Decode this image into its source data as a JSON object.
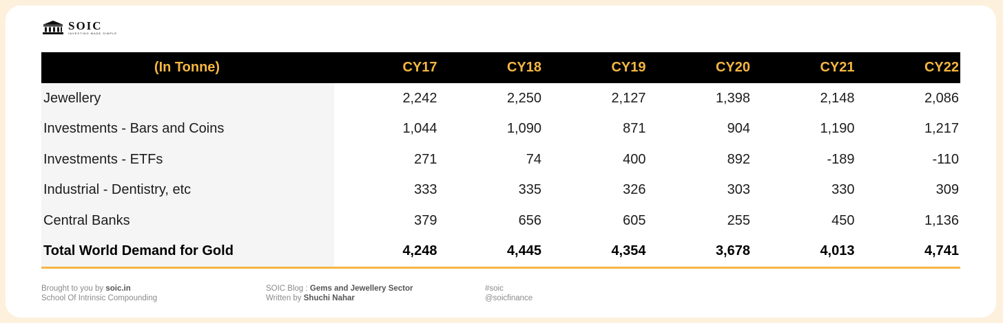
{
  "brand": {
    "name": "SOIC",
    "tagline": "INVESTING MADE SIMPLE",
    "icon": "bank-building-icon"
  },
  "colors": {
    "header_bg": "#000000",
    "accent": "#f5b642",
    "label_bg": "#f5f5f5",
    "page_bg": "#fdf1dd"
  },
  "table": {
    "header_label": "(In Tonne)",
    "columns": [
      "CY17",
      "CY18",
      "CY19",
      "CY20",
      "CY21",
      "CY22"
    ],
    "rows": [
      {
        "label": "Jewellery",
        "values": [
          "2,242",
          "2,250",
          "2,127",
          "1,398",
          "2,148",
          "2,086"
        ]
      },
      {
        "label": "Investments - Bars and Coins",
        "values": [
          "1,044",
          "1,090",
          "871",
          "904",
          "1,190",
          "1,217"
        ]
      },
      {
        "label": "Investments - ETFs",
        "values": [
          "271",
          "74",
          "400",
          "892",
          "-189",
          "-110"
        ]
      },
      {
        "label": "Industrial - Dentistry, etc",
        "values": [
          "333",
          "335",
          "326",
          "303",
          "330",
          "309"
        ]
      },
      {
        "label": "Central Banks",
        "values": [
          "379",
          "656",
          "605",
          "255",
          "450",
          "1,136"
        ]
      }
    ],
    "total": {
      "label": "Total World Demand for Gold",
      "values": [
        "4,248",
        "4,445",
        "4,354",
        "3,678",
        "4,013",
        "4,741"
      ]
    }
  },
  "footer": {
    "brought_prefix": "Brought to you by ",
    "brought_site": "soic.in",
    "school": "School Of Intrinsic Compounding",
    "blog_prefix": "SOIC Blog : ",
    "blog_title": "Gems and Jewellery Sector",
    "written_prefix": "Written by ",
    "author": "Shuchi Nahar",
    "hashtag": "#soic",
    "handle": "@soicfinance"
  }
}
